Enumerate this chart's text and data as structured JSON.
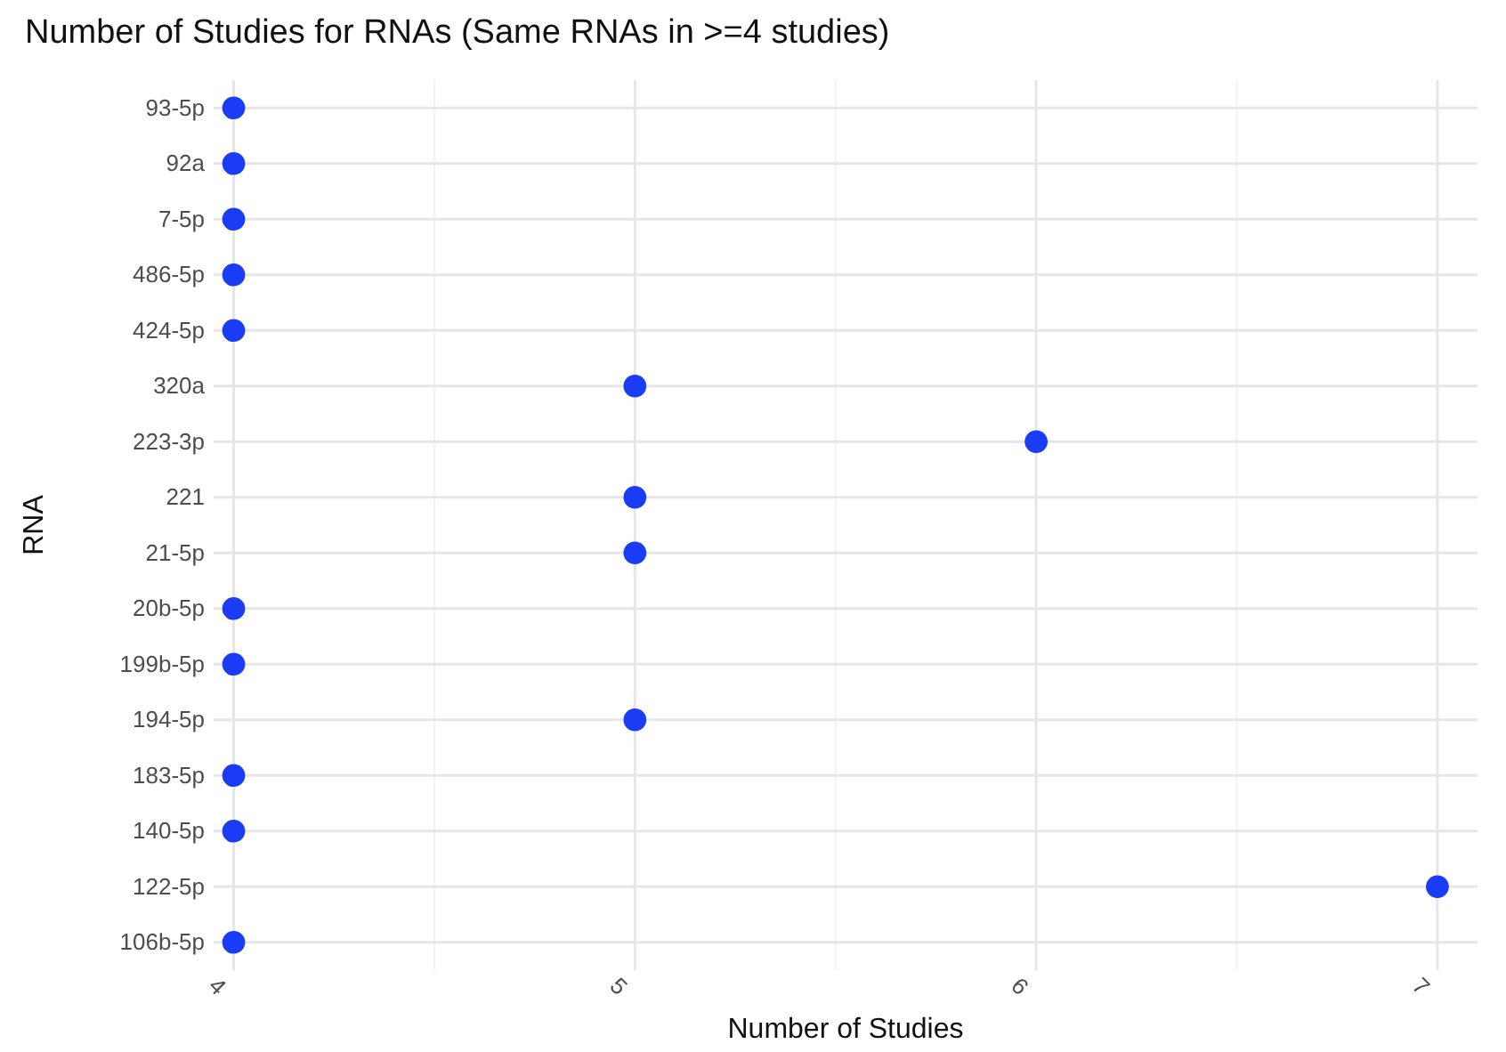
{
  "chart_data": {
    "type": "scatter",
    "title": "Number of Studies for RNAs (Same RNAs in >=4 studies)",
    "xlabel": "Number of Studies",
    "ylabel": "RNA",
    "orientation": "horizontal",
    "categories": [
      "93-5p",
      "92a",
      "7-5p",
      "486-5p",
      "424-5p",
      "320a",
      "223-3p",
      "221",
      "21-5p",
      "20b-5p",
      "199b-5p",
      "194-5p",
      "183-5p",
      "140-5p",
      "122-5p",
      "106b-5p"
    ],
    "series": [
      {
        "color": "#1a3cf5",
        "values": [
          4,
          4,
          4,
          4,
          4,
          5,
          6,
          5,
          5,
          4,
          4,
          5,
          4,
          4,
          7,
          4
        ]
      }
    ],
    "xlim": [
      3.95,
      7.1
    ],
    "xticks": [
      4,
      {
        "value": 4.5,
        "label": null
      },
      5,
      {
        "value": 5.5,
        "label": null
      },
      6,
      {
        "value": 6.5,
        "label": null
      },
      7
    ],
    "grid": true,
    "marker": "circle"
  }
}
